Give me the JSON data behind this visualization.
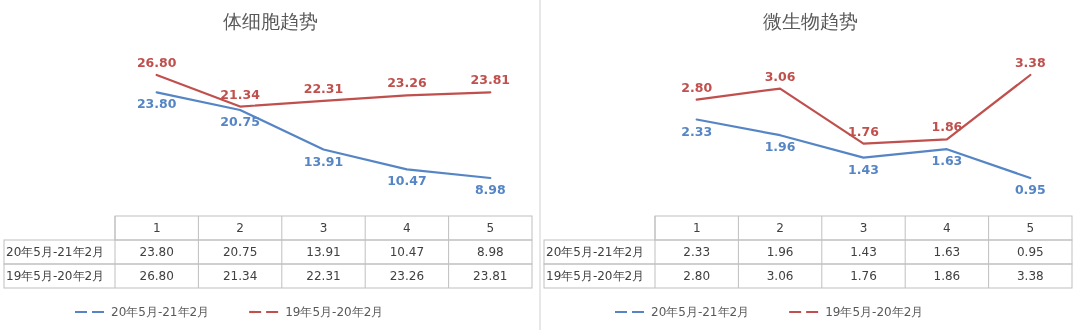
{
  "chart_data": [
    {
      "type": "line",
      "title": "体细胞趋势",
      "categories": [
        "1",
        "2",
        "3",
        "4",
        "5"
      ],
      "legend": "bottom",
      "series": [
        {
          "name": "20年5月-21年2月",
          "color": "#5585c5",
          "values": [
            23.8,
            20.75,
            13.91,
            10.47,
            8.98
          ],
          "value_labels": [
            "23.80",
            "20.75",
            "13.91",
            "10.47",
            "8.98"
          ]
        },
        {
          "name": "19年5月-20年2月",
          "color": "#c0504d",
          "values": [
            26.8,
            21.34,
            22.31,
            23.26,
            23.81
          ],
          "value_labels": [
            "26.80",
            "21.34",
            "22.31",
            "23.26",
            "23.81"
          ]
        }
      ]
    },
    {
      "type": "line",
      "title": "微生物趋势",
      "categories": [
        "1",
        "2",
        "3",
        "4",
        "5"
      ],
      "legend": "bottom",
      "series": [
        {
          "name": "20年5月-21年2月",
          "color": "#5585c5",
          "values": [
            2.33,
            1.96,
            1.43,
            1.63,
            0.95
          ],
          "value_labels": [
            "2.33",
            "1.96",
            "1.43",
            "1.63",
            "0.95"
          ]
        },
        {
          "name": "19年5月-20年2月",
          "color": "#c0504d",
          "values": [
            2.8,
            3.06,
            1.76,
            1.86,
            3.38
          ],
          "value_labels": [
            "2.80",
            "3.06",
            "1.76",
            "1.86",
            "3.38"
          ]
        }
      ]
    }
  ]
}
